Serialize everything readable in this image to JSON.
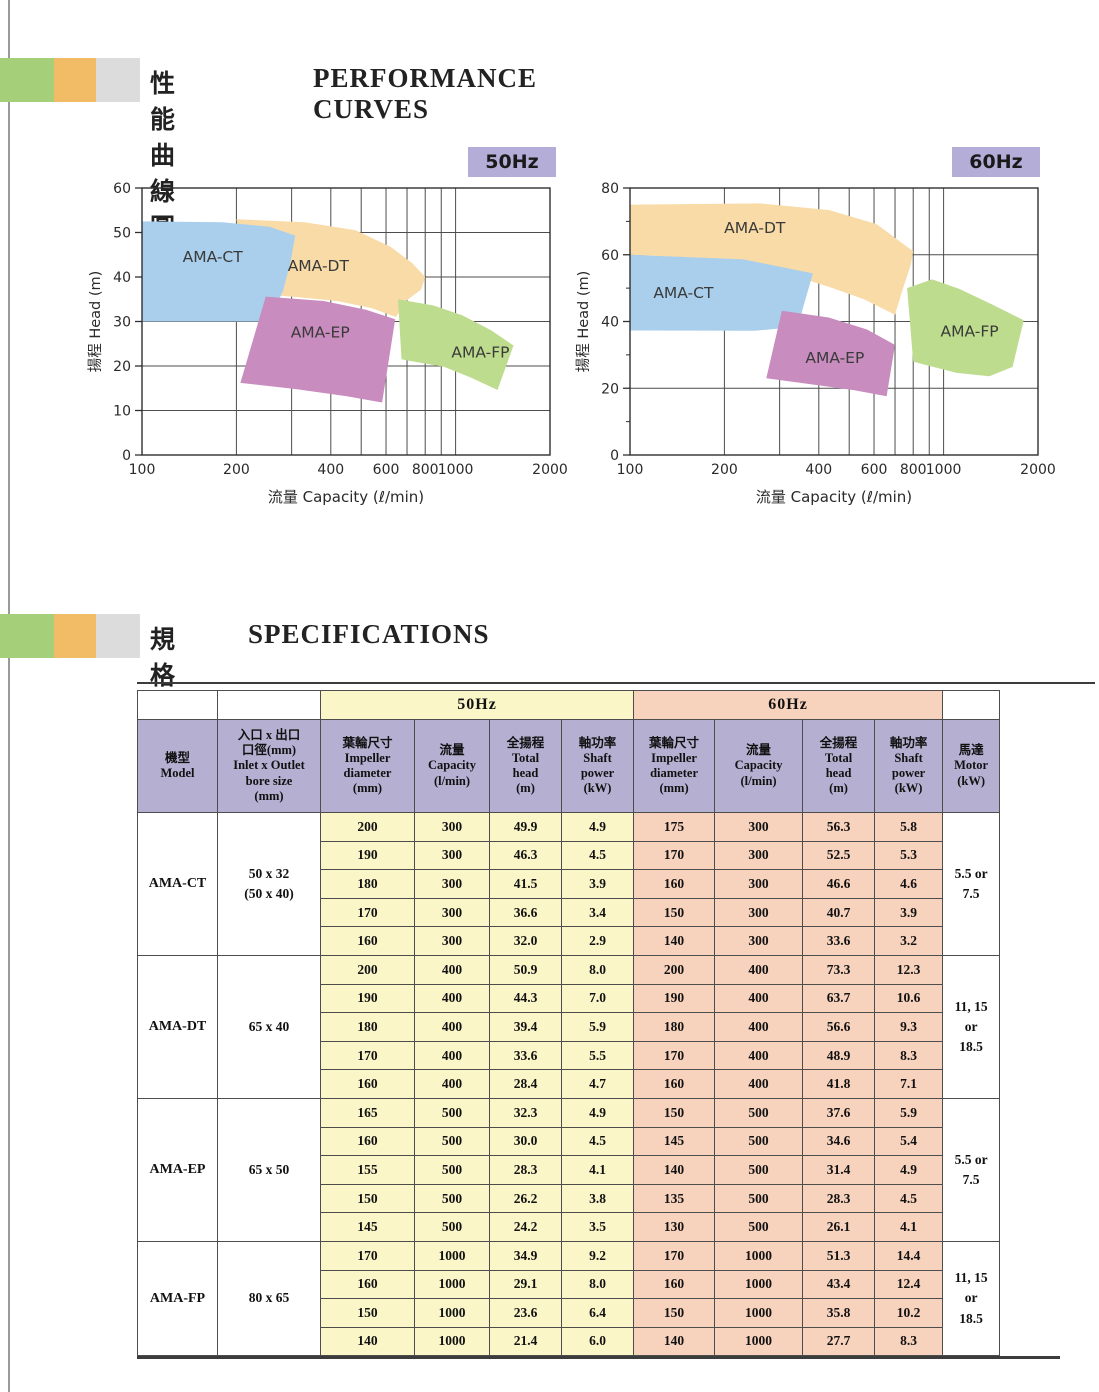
{
  "sections": [
    {
      "zh": "性能曲線圖",
      "en": "PERFORMANCE CURVES"
    },
    {
      "zh": "規格表",
      "en": "SPECIFICATIONS"
    }
  ],
  "colors": {
    "accent_green": "#a6cf7a",
    "accent_orange": "#f2bc66",
    "accent_gray": "#dcdcdc",
    "badge_bg": "#b3add7",
    "hz50_bg": "#fbf6c8",
    "hz60_bg": "#f7d2bd",
    "table_header_bg": "#b5afd1"
  },
  "chart_data": [
    {
      "type": "area",
      "title": "50Hz",
      "xlabel": "流量 Capacity (ℓ/min)",
      "ylabel": "揚程 Head (m)",
      "x": {
        "scale": "log",
        "min": 100,
        "max": 2000,
        "ticks": [
          100,
          200,
          400,
          600,
          800,
          1000,
          2000
        ],
        "gridlines": [
          200,
          300,
          400,
          500,
          600,
          700,
          800,
          900,
          1000
        ]
      },
      "y": {
        "min": 0,
        "max": 60,
        "ticks": [
          0,
          10,
          20,
          30,
          40,
          50,
          60
        ],
        "gridlines": [
          10,
          20,
          30,
          40,
          50
        ],
        "minor_ticks": []
      },
      "regions": [
        {
          "name": "AMA-DT",
          "color": "#f8dba6",
          "label_pos": [
            365,
            42.5
          ],
          "polygon": [
            [
              200,
              53
            ],
            [
              330,
              52.3
            ],
            [
              480,
              50.5
            ],
            [
              620,
              46.8
            ],
            [
              730,
              43
            ],
            [
              800,
              40
            ],
            [
              776,
              37.2
            ],
            [
              700,
              34.8
            ],
            [
              645,
              31
            ],
            [
              540,
              33
            ],
            [
              420,
              34.6
            ],
            [
              300,
              35.6
            ],
            [
              248,
              36
            ],
            [
              210,
              45
            ]
          ]
        },
        {
          "name": "AMA-CT",
          "color": "#a9cfec",
          "label_pos": [
            168,
            44.5
          ],
          "polygon": [
            [
              100,
              52.5
            ],
            [
              180,
              52.3
            ],
            [
              255,
              51.3
            ],
            [
              308,
              49.3
            ],
            [
              298,
              43.5
            ],
            [
              282,
              37
            ],
            [
              260,
              31.5
            ],
            [
              243,
              30
            ],
            [
              160,
              30
            ],
            [
              100,
              30
            ]
          ]
        },
        {
          "name": "AMA-EP",
          "color": "#c88cbe",
          "label_pos": [
            370,
            27.5
          ],
          "polygon": [
            [
              248,
              35.6
            ],
            [
              380,
              34.6
            ],
            [
              520,
              32.6
            ],
            [
              642,
              30.5
            ],
            [
              583,
              11.8
            ],
            [
              450,
              13.2
            ],
            [
              310,
              14.8
            ],
            [
              206,
              16.2
            ]
          ]
        },
        {
          "name": "AMA-FP",
          "color": "#bedc8e",
          "label_pos": [
            1200,
            23
          ],
          "polygon": [
            [
              655,
              35
            ],
            [
              850,
              33.6
            ],
            [
              1050,
              31.4
            ],
            [
              1300,
              28
            ],
            [
              1530,
              24.6
            ],
            [
              1360,
              14.6
            ],
            [
              1120,
              17.4
            ],
            [
              920,
              19.8
            ],
            [
              710,
              21.2
            ],
            [
              672,
              21.5
            ]
          ]
        }
      ]
    },
    {
      "type": "area",
      "title": "60Hz",
      "xlabel": "流量 Capacity (ℓ/min)",
      "ylabel": "揚程 Head (m)",
      "x": {
        "scale": "log",
        "min": 100,
        "max": 2000,
        "ticks": [
          100,
          200,
          400,
          600,
          800,
          1000,
          2000
        ],
        "gridlines": [
          200,
          300,
          400,
          500,
          600,
          700,
          800,
          900,
          1000
        ]
      },
      "y": {
        "min": 0,
        "max": 80,
        "ticks": [
          0,
          20,
          40,
          60,
          80
        ],
        "gridlines": [
          20,
          40,
          60
        ],
        "minor_ticks": [
          10,
          30,
          50,
          70
        ]
      },
      "regions": [
        {
          "name": "AMA-DT",
          "color": "#f8dba6",
          "label_pos": [
            250,
            68
          ],
          "polygon": [
            [
              100,
              75
            ],
            [
              260,
              75.4
            ],
            [
              430,
              73.4
            ],
            [
              610,
              69.2
            ],
            [
              800,
              61
            ],
            [
              786,
              57
            ],
            [
              737,
              49
            ],
            [
              700,
              42
            ],
            [
              560,
              46.6
            ],
            [
              430,
              50.4
            ],
            [
              310,
              54.6
            ],
            [
              190,
              58.8
            ],
            [
              100,
              60
            ]
          ]
        },
        {
          "name": "AMA-CT",
          "color": "#a9cfec",
          "label_pos": [
            148,
            48.5
          ],
          "polygon": [
            [
              100,
              60
            ],
            [
              230,
              58.6
            ],
            [
              383,
              54.4
            ],
            [
              356,
              44
            ],
            [
              344,
              38.4
            ],
            [
              250,
              37.2
            ],
            [
              100,
              37.3
            ]
          ]
        },
        {
          "name": "AMA-EP",
          "color": "#c88cbe",
          "label_pos": [
            450,
            29
          ],
          "polygon": [
            [
              305,
              43.2
            ],
            [
              430,
              41.2
            ],
            [
              570,
              37.6
            ],
            [
              700,
              33
            ],
            [
              658,
              17.6
            ],
            [
              520,
              19.4
            ],
            [
              390,
              21
            ],
            [
              272,
              23
            ]
          ]
        },
        {
          "name": "AMA-FP",
          "color": "#bedc8e",
          "label_pos": [
            1210,
            37
          ],
          "polygon": [
            [
              765,
              50
            ],
            [
              920,
              52.6
            ],
            [
              1120,
              49.8
            ],
            [
              1420,
              45.2
            ],
            [
              1800,
              40.4
            ],
            [
              1660,
              26.4
            ],
            [
              1400,
              23.6
            ],
            [
              1100,
              24.6
            ],
            [
              910,
              26.6
            ],
            [
              800,
              28
            ]
          ]
        }
      ]
    }
  ],
  "spec_table": {
    "freq_headers": [
      "50Hz",
      "60Hz"
    ],
    "column_headers": {
      "model": "機型\nModel",
      "bore": "入口 x 出口\n口徑(mm)\nInlet x Outlet\nbore size\n(mm)",
      "impeller": "葉輪尺寸\nImpeller\ndiameter\n(mm)",
      "capacity": "流量\nCapacity\n(l/min)",
      "head": "全揚程\nTotal\nhead\n(m)",
      "power": "軸功率\nShaft\npower\n(kW)",
      "motor": "馬達\nMotor\n(kW)"
    },
    "groups": [
      {
        "model": "AMA-CT",
        "bore": "50 x 32\n(50 x 40)",
        "motor": "5.5 or\n7.5",
        "rows": [
          [
            "200",
            "300",
            "49.9",
            "4.9",
            "175",
            "300",
            "56.3",
            "5.8"
          ],
          [
            "190",
            "300",
            "46.3",
            "4.5",
            "170",
            "300",
            "52.5",
            "5.3"
          ],
          [
            "180",
            "300",
            "41.5",
            "3.9",
            "160",
            "300",
            "46.6",
            "4.6"
          ],
          [
            "170",
            "300",
            "36.6",
            "3.4",
            "150",
            "300",
            "40.7",
            "3.9"
          ],
          [
            "160",
            "300",
            "32.0",
            "2.9",
            "140",
            "300",
            "33.6",
            "3.2"
          ]
        ]
      },
      {
        "model": "AMA-DT",
        "bore": "65 x 40",
        "motor": "11, 15\nor\n18.5",
        "rows": [
          [
            "200",
            "400",
            "50.9",
            "8.0",
            "200",
            "400",
            "73.3",
            "12.3"
          ],
          [
            "190",
            "400",
            "44.3",
            "7.0",
            "190",
            "400",
            "63.7",
            "10.6"
          ],
          [
            "180",
            "400",
            "39.4",
            "5.9",
            "180",
            "400",
            "56.6",
            "9.3"
          ],
          [
            "170",
            "400",
            "33.6",
            "5.5",
            "170",
            "400",
            "48.9",
            "8.3"
          ],
          [
            "160",
            "400",
            "28.4",
            "4.7",
            "160",
            "400",
            "41.8",
            "7.1"
          ]
        ]
      },
      {
        "model": "AMA-EP",
        "bore": "65 x 50",
        "motor": "5.5 or\n7.5",
        "rows": [
          [
            "165",
            "500",
            "32.3",
            "4.9",
            "150",
            "500",
            "37.6",
            "5.9"
          ],
          [
            "160",
            "500",
            "30.0",
            "4.5",
            "145",
            "500",
            "34.6",
            "5.4"
          ],
          [
            "155",
            "500",
            "28.3",
            "4.1",
            "140",
            "500",
            "31.4",
            "4.9"
          ],
          [
            "150",
            "500",
            "26.2",
            "3.8",
            "135",
            "500",
            "28.3",
            "4.5"
          ],
          [
            "145",
            "500",
            "24.2",
            "3.5",
            "130",
            "500",
            "26.1",
            "4.1"
          ]
        ]
      },
      {
        "model": "AMA-FP",
        "bore": "80 x 65",
        "motor": "11, 15\nor\n18.5",
        "rows": [
          [
            "170",
            "1000",
            "34.9",
            "9.2",
            "170",
            "1000",
            "51.3",
            "14.4"
          ],
          [
            "160",
            "1000",
            "29.1",
            "8.0",
            "160",
            "1000",
            "43.4",
            "12.4"
          ],
          [
            "150",
            "1000",
            "23.6",
            "6.4",
            "150",
            "1000",
            "35.8",
            "10.2"
          ],
          [
            "140",
            "1000",
            "21.4",
            "6.0",
            "140",
            "1000",
            "27.7",
            "8.3"
          ]
        ]
      }
    ]
  }
}
